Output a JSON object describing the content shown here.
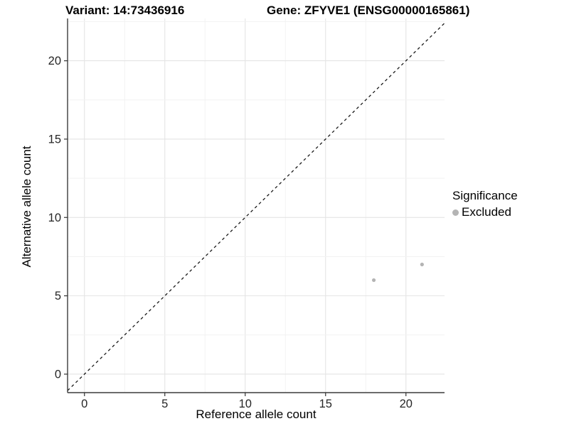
{
  "titles": {
    "variant": "Variant: 14:73436916",
    "gene": "Gene: ZFYVE1 (ENSG00000165861)"
  },
  "axes": {
    "x_label": "Reference allele count",
    "y_label": "Alternative allele count"
  },
  "legend": {
    "title": "Significance",
    "items": [
      {
        "label": "Excluded",
        "color": "#b4b4b4"
      }
    ]
  },
  "chart_data": {
    "type": "scatter",
    "title": "Variant: 14:73436916   Gene: ZFYVE1 (ENSG00000165861)",
    "xlabel": "Reference allele count",
    "ylabel": "Alternative allele count",
    "series": [
      {
        "name": "Excluded",
        "color": "#b4b4b4",
        "points": [
          {
            "x": 18,
            "y": 6
          },
          {
            "x": 21,
            "y": 7
          }
        ]
      }
    ],
    "x_ticks": [
      0,
      5,
      10,
      15,
      20
    ],
    "y_ticks": [
      0,
      5,
      10,
      15,
      20
    ],
    "x_range": [
      -1.05,
      22.4
    ],
    "y_range": [
      -1.18,
      22.7
    ],
    "minor_step": 2.5,
    "identity_line": {
      "type": "dashed",
      "equation": "y = x",
      "color": "#1a1a1a"
    },
    "grid": {
      "on": true,
      "major_color": "#e4e4e4",
      "minor_color": "#f2f2f2"
    },
    "legend_position": "right",
    "point_radius": 2.6,
    "colors": {
      "axis_line": "#3c3c3c",
      "tick_mark": "#333333",
      "tick_label": "#262626",
      "background": "#ffffff"
    }
  }
}
